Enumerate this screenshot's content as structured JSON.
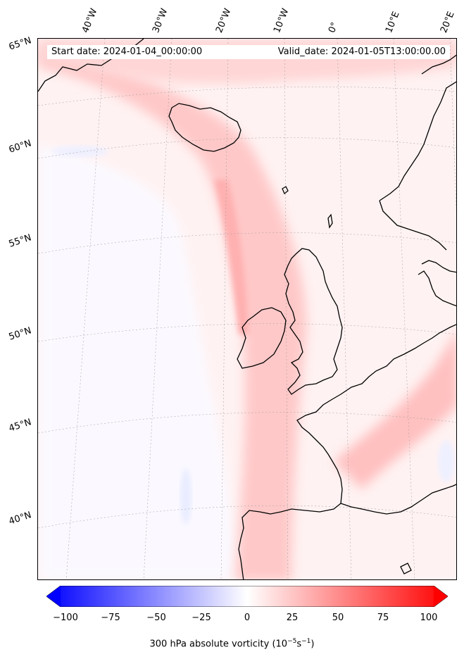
{
  "header": {
    "start_date": "Start date: 2024-01-04_00:00:00",
    "valid_date": "Valid_date: 2024-01-05T13:00:00.00"
  },
  "longitude_labels": [
    "40°W",
    "30°W",
    "20°W",
    "10°W",
    "0°",
    "10°E",
    "20°E"
  ],
  "latitude_labels": [
    "65°N",
    "60°N",
    "55°N",
    "50°N",
    "45°N",
    "40°N"
  ],
  "colorbar": {
    "ticks": [
      "−100",
      "−75",
      "−50",
      "−25",
      "0",
      "25",
      "50",
      "75",
      "100"
    ],
    "title": "300 hPa absolute vorticity (10",
    "title_exp1": "−5",
    "title_mid": "s",
    "title_exp2": "−1",
    "title_end": ")",
    "min_color": "#0000ff",
    "mid_color": "#ffffff",
    "max_color": "#ff0000"
  }
}
